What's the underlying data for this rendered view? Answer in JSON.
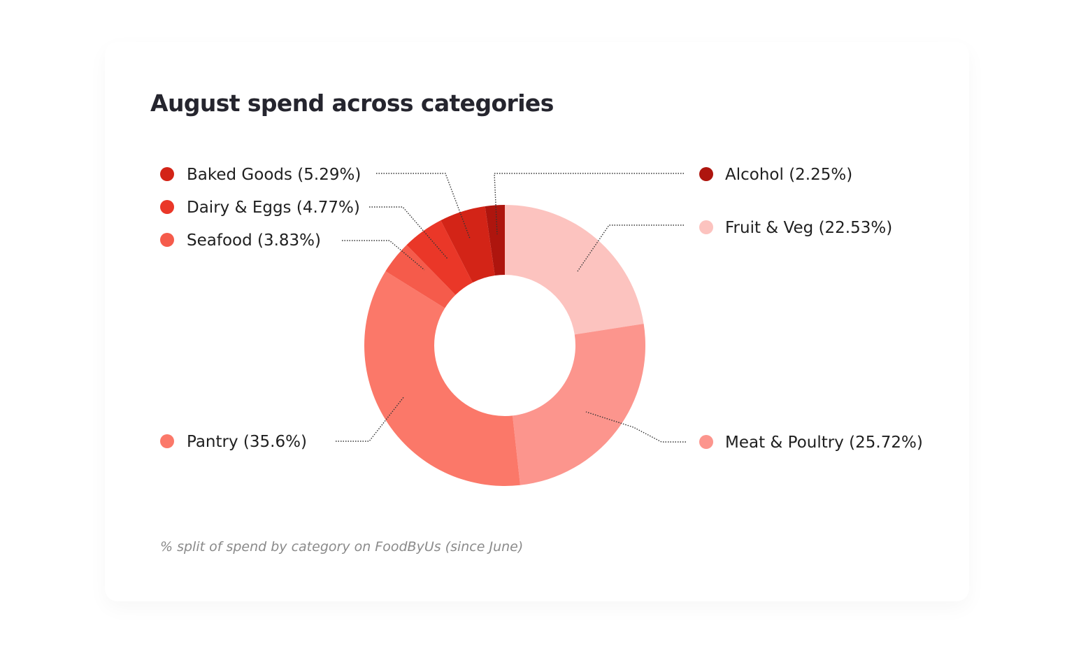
{
  "title": "August spend across categories",
  "caption": "% split of spend by category on FoodByUs (since June)",
  "chart_data": {
    "type": "pie",
    "variant": "donut",
    "title": "August spend across categories",
    "unit": "%",
    "slices": [
      {
        "label": "Fruit & Veg",
        "display": "Fruit & Veg (22.53%)",
        "value": 22.53,
        "color": "#fcc3bf",
        "side": "right"
      },
      {
        "label": "Meat & Poultry",
        "display": "Meat & Poultry (25.72%)",
        "value": 25.72,
        "color": "#fc958d",
        "side": "right"
      },
      {
        "label": "Pantry",
        "display": "Pantry (35.6%)",
        "value": 35.6,
        "color": "#fb7869",
        "side": "left"
      },
      {
        "label": "Seafood",
        "display": "Seafood (3.83%)",
        "value": 3.83,
        "color": "#f55b4b",
        "side": "left"
      },
      {
        "label": "Dairy & Eggs",
        "display": "Dairy & Eggs (4.77%)",
        "value": 4.77,
        "color": "#ea3728",
        "side": "left"
      },
      {
        "label": "Baked Goods",
        "display": "Baked Goods (5.29%)",
        "value": 5.29,
        "color": "#d32417",
        "side": "left"
      },
      {
        "label": "Alcohol",
        "display": "Alcohol (2.25%)",
        "value": 2.25,
        "color": "#ae150e",
        "side": "right"
      }
    ],
    "legend_placement": "callouts around chart"
  }
}
